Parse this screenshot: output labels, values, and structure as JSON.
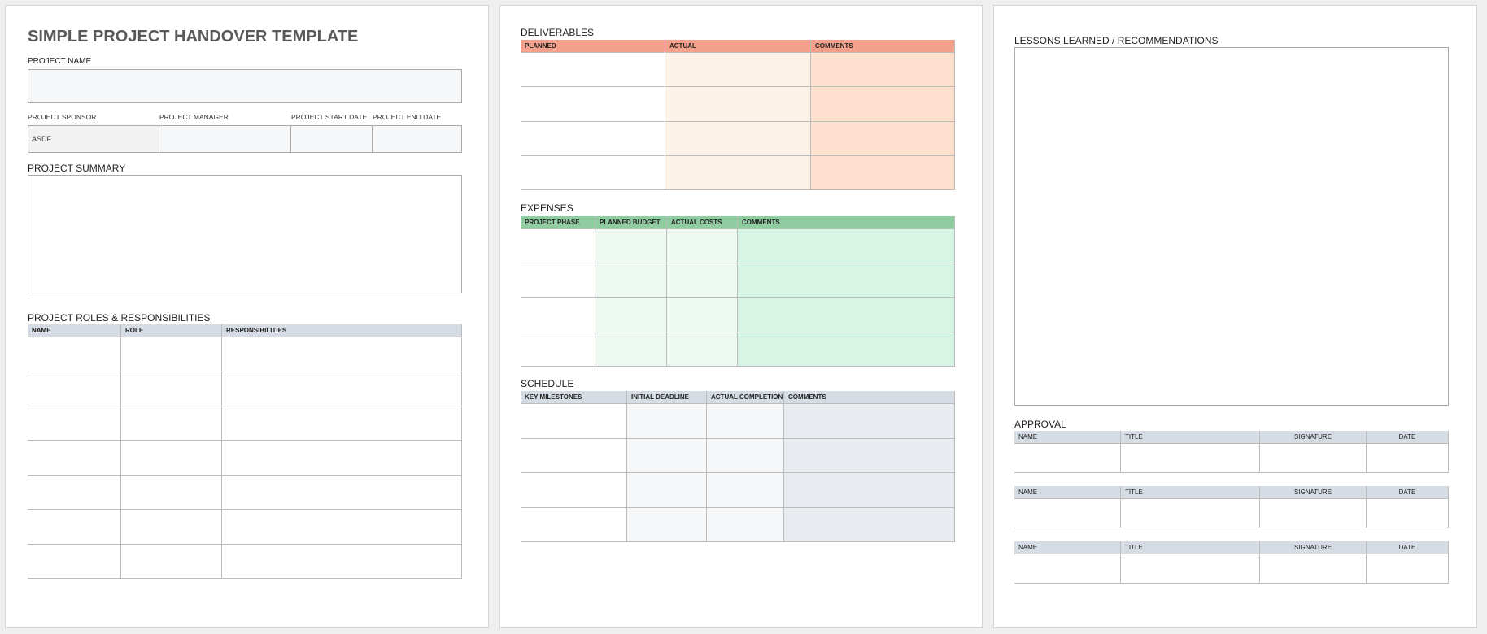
{
  "title": "SIMPLE PROJECT HANDOVER TEMPLATE",
  "project_name": {
    "label": "PROJECT NAME"
  },
  "info": {
    "headers": [
      "PROJECT SPONSOR",
      "PROJECT MANAGER",
      "PROJECT START DATE",
      "PROJECT END DATE"
    ],
    "sponsor_value": "ASDF"
  },
  "summary": {
    "label": "PROJECT SUMMARY"
  },
  "roles": {
    "label": "PROJECT ROLES & RESPONSIBILITIES",
    "headers": [
      "NAME",
      "ROLE",
      "RESPONSIBILITIES"
    ]
  },
  "deliverables": {
    "label": "DELIVERABLES",
    "headers": [
      "PLANNED",
      "ACTUAL",
      "COMMENTS"
    ]
  },
  "expenses": {
    "label": "EXPENSES",
    "headers": [
      "PROJECT PHASE",
      "PLANNED BUDGET",
      "ACTUAL COSTS",
      "COMMENTS"
    ]
  },
  "schedule": {
    "label": "SCHEDULE",
    "headers": [
      "KEY MILESTONES",
      "INITIAL DEADLINE",
      "ACTUAL COMPLETION",
      "COMMENTS"
    ]
  },
  "lessons": {
    "label": "LESSONS LEARNED / RECOMMENDATIONS"
  },
  "approval": {
    "label": "APPROVAL",
    "headers": [
      "NAME",
      "TITLE",
      "SIGNATURE",
      "DATE"
    ]
  }
}
